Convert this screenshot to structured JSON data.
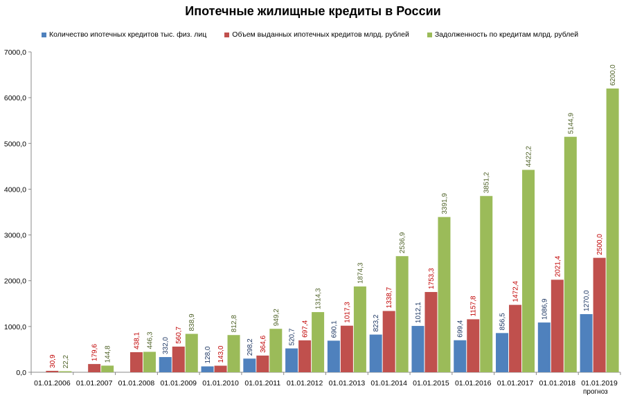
{
  "chart_data": {
    "type": "bar",
    "title": "Ипотечные жилищные кредиты в России",
    "categories": [
      "01.01.2006",
      "01.01.2007",
      "01.01.2008",
      "01.01.2009",
      "01.01.2010",
      "01.01.2011",
      "01.01.2012",
      "01.01.2013",
      "01.01.2014",
      "01.01.2015",
      "01.01.2016",
      "01.01.2017",
      "01.01.2018",
      "01.01.2019"
    ],
    "category_note": "прогноз",
    "series": [
      {
        "name": "Количество ипотечных кредитов тыс. физ. лиц",
        "color": "#4F81BD",
        "label_color": "#1F3864",
        "values": [
          null,
          null,
          null,
          332.0,
          128.0,
          298.2,
          520.7,
          690.1,
          823.2,
          1012.1,
          699.4,
          856.5,
          1086.9,
          1270.0
        ],
        "labels": [
          "",
          "",
          "",
          "332,0",
          "128,0",
          "298,2",
          "520,7",
          "690,1",
          "823,2",
          "1012,1",
          "699,4",
          "856,5",
          "1086,9",
          "1270,0"
        ]
      },
      {
        "name": "Объем выданных ипотечных кредитов млрд. рублей",
        "color": "#C0504D",
        "label_color": "#C00000",
        "values": [
          30.9,
          179.6,
          438.1,
          560.7,
          143.0,
          364.6,
          697.4,
          1017.3,
          1338.7,
          1753.3,
          1157.8,
          1472.4,
          2021.4,
          2500.0
        ],
        "labels": [
          "30,9",
          "179,6",
          "438,1",
          "560,7",
          "143,0",
          "364,6",
          "697,4",
          "1017,3",
          "1338,7",
          "1753,3",
          "1157,8",
          "1472,4",
          "2021,4",
          "2500,0"
        ]
      },
      {
        "name": "Задолженность по кредитам млрд. рублей",
        "color": "#9BBB59",
        "label_color": "#4F6228",
        "values": [
          22.2,
          144.8,
          446.3,
          838.9,
          812.8,
          949.2,
          1314.3,
          1874.3,
          2536.9,
          3391.9,
          3851.2,
          4422.2,
          5144.9,
          6200.0
        ],
        "labels": [
          "22,2",
          "144,8",
          "446,3",
          "838,9",
          "812,8",
          "949,2",
          "1314,3",
          "1874,3",
          "2536,9",
          "3391,9",
          "3851,2",
          "4422,2",
          "5144,9",
          "6200,0"
        ]
      }
    ],
    "y_ticks": [
      "0,0",
      "1000,0",
      "2000,0",
      "3000,0",
      "4000,0",
      "5000,0",
      "6000,0",
      "7000,0"
    ],
    "ylim": [
      0,
      7000
    ],
    "grid": false,
    "legend_position": "top"
  }
}
